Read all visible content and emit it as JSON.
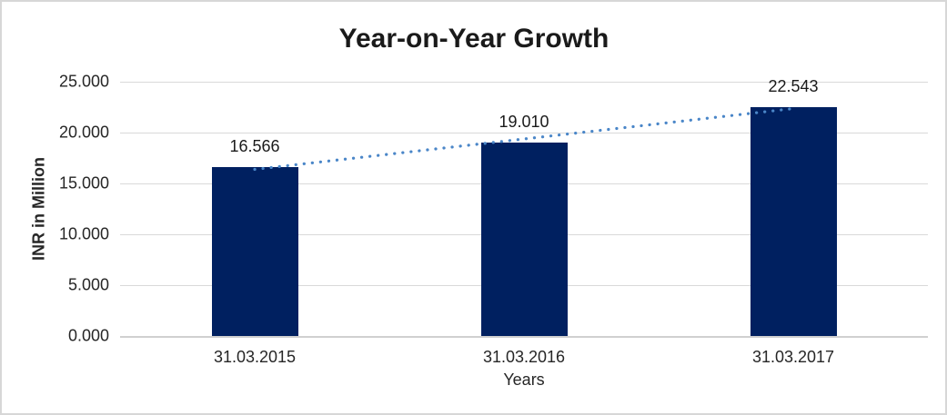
{
  "chart_data": {
    "type": "bar",
    "title": "Year-on-Year Growth",
    "categories": [
      "31.03.2015",
      "31.03.2016",
      "31.03.2017"
    ],
    "values": [
      16.566,
      19.01,
      22.543
    ],
    "value_labels": [
      "16.566",
      "19.010",
      "22.543"
    ],
    "xlabel": "Years",
    "ylabel": "INR in Million",
    "ylim": [
      0,
      25
    ],
    "ytick_labels_top_to_bottom": [
      "25.000",
      "20.000",
      "15.000",
      "10.000",
      "5.000",
      "0.000"
    ],
    "grid": true,
    "legend_position": "none",
    "bar_color": "#002060",
    "trendline": {
      "type": "linear",
      "style": "dotted",
      "color": "#4a86c8"
    },
    "gridline_color": "#d9d9d9",
    "axis_text_color": "#262626"
  }
}
